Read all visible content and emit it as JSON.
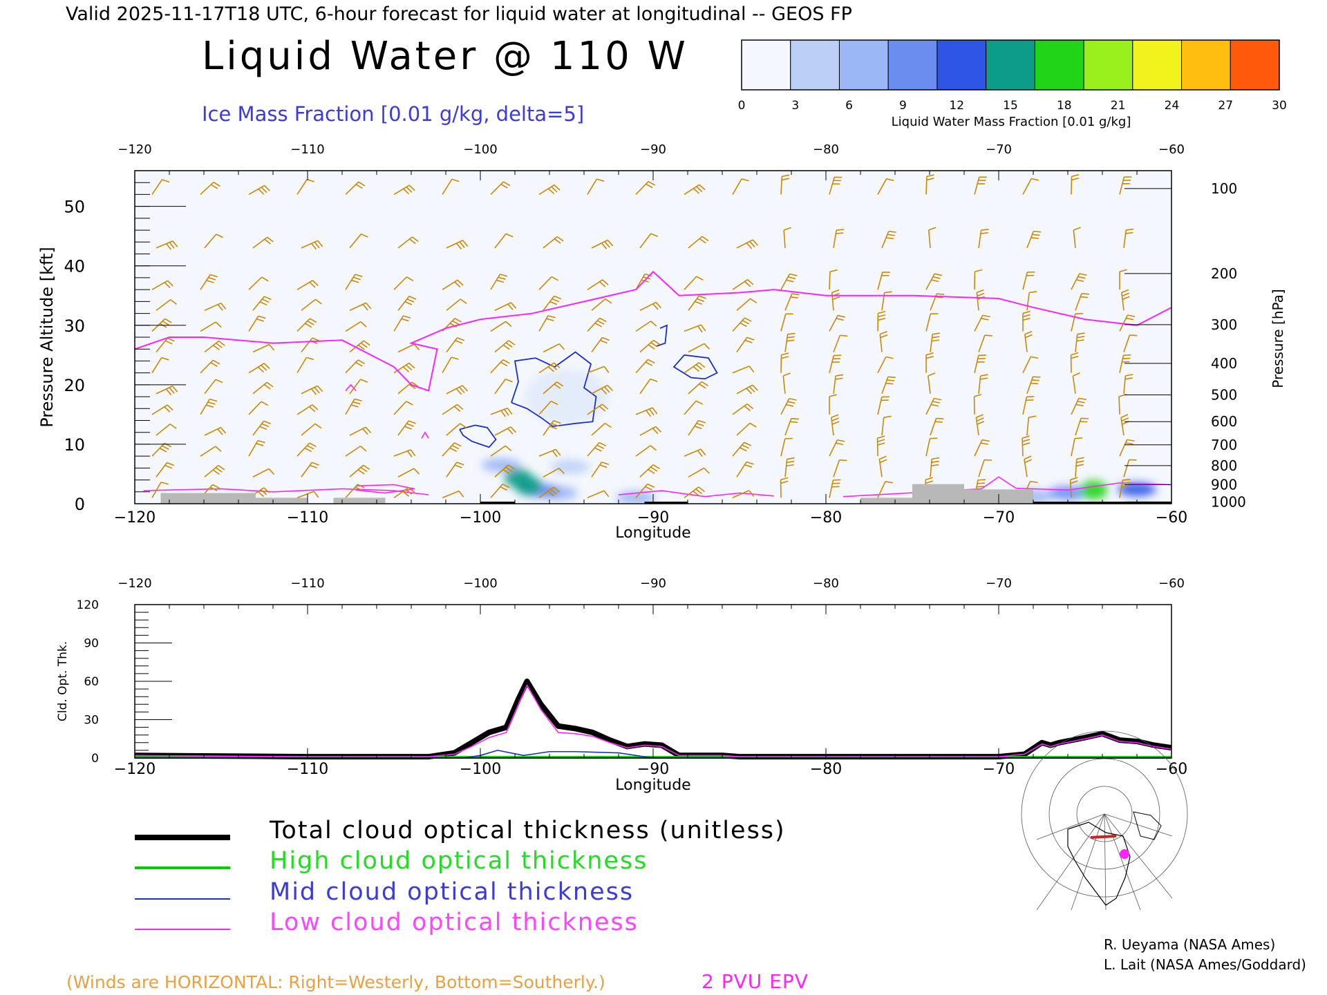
{
  "header": {
    "valid_line": "Valid 2025-11-17T18 UTC, 6-hour forecast for liquid water at longitudinal -- GEOS FP",
    "title": "Liquid Water @ 110 W",
    "ice_label": "Ice Mass Fraction [0.01 g/kg, delta=5]"
  },
  "colorbar": {
    "label": "Liquid Water Mass Fraction [0.01 g/kg]",
    "ticks": [
      "0",
      "3",
      "6",
      "9",
      "12",
      "15",
      "18",
      "21",
      "24",
      "27",
      "30"
    ],
    "colors": [
      "#f4f7fd",
      "#bcd0f7",
      "#9cb7f5",
      "#6c8df0",
      "#2f55e6",
      "#0e9c8a",
      "#22d418",
      "#9af01c",
      "#f2f21c",
      "#ffbe10",
      "#ff5a0a"
    ]
  },
  "colors": {
    "pv_contour": "#ff22ff",
    "ice_contour": "#1a2ec8",
    "wind_barbs": "#cc8800",
    "total_line": "#000000",
    "high_line": "#00cc00",
    "mid_line": "#1a2ec8",
    "low_line": "#ff22ff",
    "terrain": "#b8b8b8"
  },
  "chart_data": [
    {
      "type": "heatmap",
      "title": "Liquid Water @ 110 W",
      "xlabel": "Longitude",
      "ylabel": "Pressure Altitude [kft]",
      "y2label": "Pressure [hPa]",
      "xlim": [
        -120,
        -60
      ],
      "ylim": [
        0,
        56
      ],
      "x_ticks": [
        -120,
        -110,
        -100,
        -90,
        -80,
        -70,
        -60
      ],
      "x_tick_labels": [
        "−120",
        "−110",
        "−100",
        "−90",
        "−80",
        "−70",
        "−60"
      ],
      "y_ticks": [
        0,
        10,
        20,
        30,
        40,
        50
      ],
      "y_tick_labels": [
        "0",
        "10",
        "20",
        "30",
        "40",
        "50"
      ],
      "pressure_ticks": [
        {
          "label": "100",
          "kft": 53
        },
        {
          "label": "200",
          "kft": 38.7
        },
        {
          "label": "300",
          "kft": 30.1
        },
        {
          "label": "400",
          "kft": 23.6
        },
        {
          "label": "500",
          "kft": 18.3
        },
        {
          "label": "600",
          "kft": 13.8
        },
        {
          "label": "700",
          "kft": 9.9
        },
        {
          "label": "800",
          "kft": 6.4
        },
        {
          "label": "900",
          "kft": 3.2
        },
        {
          "label": "1000",
          "kft": 0.3
        }
      ],
      "liquid_water_features": [
        {
          "lon": -97.8,
          "kft": 4.3,
          "value": 17
        },
        {
          "lon": -97.2,
          "kft": 3.0,
          "value": 16
        },
        {
          "lon": -96.5,
          "kft": 2.2,
          "value": 11
        },
        {
          "lon": -98.8,
          "kft": 6.5,
          "value": 8
        },
        {
          "lon": -95.5,
          "kft": 1.8,
          "value": 8
        },
        {
          "lon": -94.8,
          "kft": 6.2,
          "value": 5
        },
        {
          "lon": -91.0,
          "kft": 1.0,
          "value": 6
        },
        {
          "lon": -64.5,
          "kft": 2.3,
          "value": 20
        },
        {
          "lon": -66.0,
          "kft": 1.8,
          "value": 10
        },
        {
          "lon": -62.0,
          "kft": 2.4,
          "value": 12
        },
        {
          "lon": -68.0,
          "kft": 1.2,
          "value": 6
        }
      ],
      "pv_2pvu_altitude": {
        "lon": [
          -120,
          -118,
          -116,
          -112,
          -108,
          -105,
          -104,
          -103,
          -102.5,
          -104,
          -102,
          -100,
          -97,
          -94,
          -91,
          -90,
          -88.5,
          -85,
          -83,
          -80,
          -75,
          -70,
          -68,
          -65,
          -62,
          -60
        ],
        "kft": [
          26,
          28,
          28,
          27,
          27.5,
          23,
          20,
          19,
          26,
          27,
          29.5,
          31,
          32,
          34,
          36,
          39,
          35,
          35.5,
          36,
          35,
          35,
          34.5,
          33,
          31,
          30,
          33
        ]
      },
      "winds_note": "(Winds are HORIZONTAL: Right=Westerly, Bottom=Southerly.)",
      "epv_label": "2 PVU EPV"
    },
    {
      "type": "line",
      "xlabel": "Longitude",
      "ylabel": "Cld. Opt. Thk.",
      "xlim": [
        -120,
        -60
      ],
      "ylim": [
        0,
        120
      ],
      "x_ticks": [
        -120,
        -110,
        -100,
        -90,
        -80,
        -70,
        -60
      ],
      "x_tick_labels": [
        "−120",
        "−110",
        "−100",
        "−90",
        "−80",
        "−70",
        "−60"
      ],
      "y_ticks": [
        0,
        30,
        60,
        90,
        120
      ],
      "y_tick_labels": [
        "0",
        "30",
        "60",
        "90",
        "120"
      ],
      "series": [
        {
          "name": "Total cloud optical thickness (unitless)",
          "x": [
            -120,
            -110,
            -103,
            -101.5,
            -100.5,
            -99.5,
            -98.5,
            -97.8,
            -97.3,
            -96.5,
            -95.5,
            -94.5,
            -93.5,
            -92.5,
            -91.5,
            -90.5,
            -89.5,
            -88.5,
            -86,
            -85,
            -80,
            -75,
            -70,
            -68.5,
            -67.5,
            -67,
            -66.5,
            -65,
            -64,
            -63,
            -62,
            -61,
            -60
          ],
          "y": [
            2,
            1,
            1,
            4,
            12,
            20,
            24,
            46,
            60,
            42,
            25,
            23,
            20,
            14,
            9,
            11,
            10,
            2,
            2,
            1,
            1,
            1,
            1,
            3,
            12,
            10,
            12,
            16,
            19,
            14,
            13,
            10,
            8
          ]
        },
        {
          "name": "High cloud optical thickness",
          "x": [
            -120,
            -60
          ],
          "y": [
            0.5,
            0.5
          ]
        },
        {
          "name": "Mid cloud optical thickness",
          "x": [
            -120,
            -101,
            -100,
            -99,
            -97.5,
            -96,
            -94.5,
            -92,
            -91,
            -90,
            -60
          ],
          "y": [
            0,
            0,
            2,
            6,
            2,
            5,
            5,
            4,
            2,
            0,
            0
          ]
        },
        {
          "name": "Low cloud optical thickness",
          "x": [
            -120,
            -110,
            -103,
            -101.5,
            -100.5,
            -99.5,
            -98.5,
            -97.8,
            -97.3,
            -96.5,
            -95.5,
            -94.5,
            -93.5,
            -92.5,
            -91.5,
            -90.5,
            -89.5,
            -88.5,
            -86,
            -85,
            -80,
            -75,
            -70,
            -68.5,
            -67.5,
            -67,
            -66.5,
            -65,
            -64,
            -63,
            -62,
            -61,
            -60
          ],
          "y": [
            2,
            1,
            1,
            3,
            9,
            16,
            20,
            42,
            57,
            38,
            20,
            19,
            17,
            12,
            8,
            10,
            9,
            2,
            2,
            1,
            1,
            1,
            1,
            3,
            11,
            9,
            11,
            15,
            18,
            13,
            12,
            9,
            7
          ]
        }
      ]
    }
  ],
  "credits": [
    "R. Ueyama (NASA Ames)",
    "L. Lait (NASA Ames/Goddard)"
  ]
}
